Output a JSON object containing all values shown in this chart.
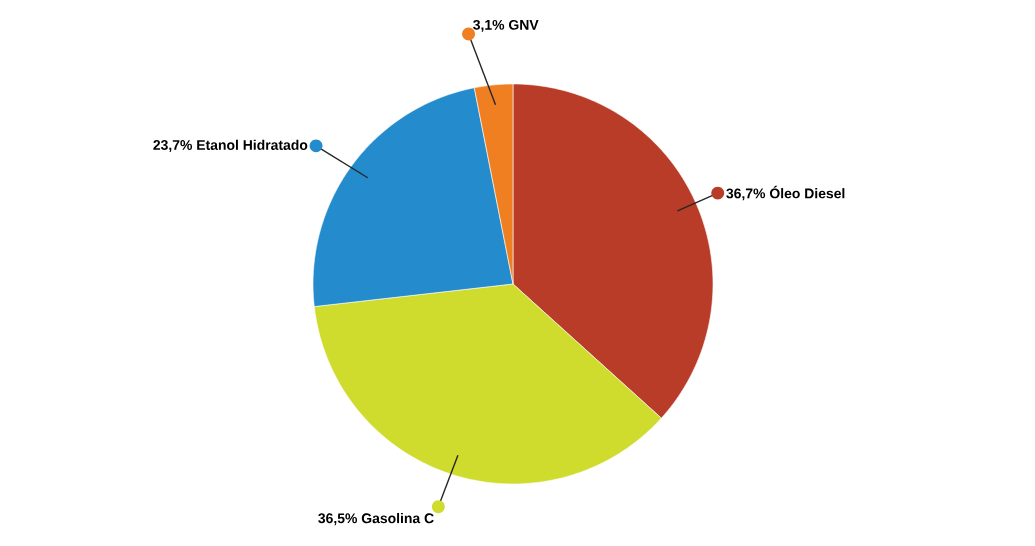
{
  "chart_data": {
    "type": "pie",
    "categories": [
      "Óleo Diesel",
      "Gasolina C",
      "Etanol Hidratado",
      "GNV"
    ],
    "values": [
      36.7,
      36.5,
      23.7,
      3.1
    ],
    "value_labels": [
      "36,7%",
      "36,5%",
      "23,7%",
      "3,1%"
    ],
    "colors": [
      "#b83c28",
      "#cfdc2e",
      "#248bcc",
      "#f07f22"
    ]
  }
}
